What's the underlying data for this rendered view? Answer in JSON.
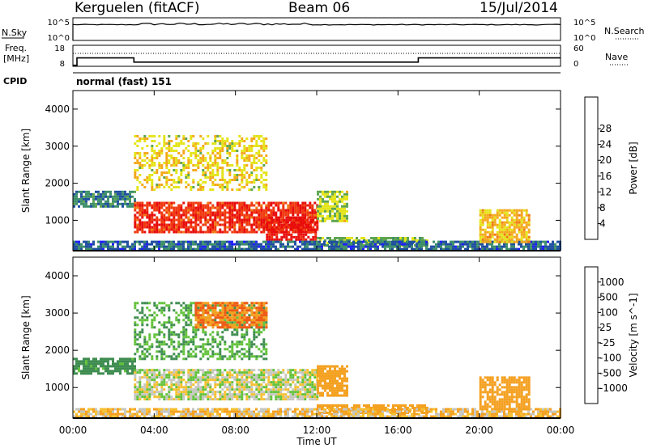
{
  "header": {
    "station": "Kerguelen (fitACF)",
    "beam": "Beam 06",
    "date": "15/Jul/2014"
  },
  "sky_panel": {
    "left_label": "N.Sky",
    "right_label": "N.Search",
    "left_ticks": [
      "10^5",
      "10^0"
    ],
    "right_ticks": [
      "10^5",
      "10^0"
    ]
  },
  "freq_panel": {
    "left_label_line1": "Freq.",
    "left_label_line2": "[MHz]",
    "right_label": "Nave",
    "left_ticks": [
      "18",
      "8"
    ],
    "right_ticks": [
      "60",
      "0"
    ],
    "freq_steps": [
      {
        "from_hour": 0.0,
        "to_hour": 0.2,
        "freq_mhz": 8.5
      },
      {
        "from_hour": 0.2,
        "to_hour": 3.0,
        "freq_mhz": 12.0
      },
      {
        "from_hour": 3.0,
        "to_hour": 17.0,
        "freq_mhz": 10.0
      },
      {
        "from_hour": 17.0,
        "to_hour": 24.0,
        "freq_mhz": 12.0
      }
    ]
  },
  "cpid": {
    "label": "CPID",
    "value": "normal (fast) 151"
  },
  "colors": {
    "power": [
      "#1f1fff",
      "#1f4fa0",
      "#3e8f6a",
      "#5fa550",
      "#e4e41a",
      "#f4a81c",
      "#f07a14",
      "#f03a10",
      "#e80c0c"
    ],
    "velocity": [
      "#e81010",
      "#f05a14",
      "#f4a020",
      "#f5c030",
      "#c6c6c0",
      "#62c23a",
      "#3e8c50",
      "#2f6fb0",
      "#2038c8"
    ],
    "ground_scatter": "#c6c6c0"
  },
  "chart_data": [
    {
      "type": "heatmap",
      "name": "power",
      "ylabel": "Slant Range [km]",
      "ylim": [
        180,
        4500
      ],
      "yticks": [
        "1000",
        "2000",
        "3000",
        "4000"
      ],
      "xlim": [
        0,
        24
      ],
      "colorbar_label": "Power [dB]",
      "colorbar_ticks": [
        "4",
        "8",
        "12",
        "16",
        "20",
        "24",
        "28"
      ],
      "features": [
        {
          "hours": [
            0.0,
            3.0
          ],
          "range_km": [
            1400,
            1800
          ],
          "level_db": 8
        },
        {
          "hours": [
            3.0,
            12.0
          ],
          "range_km": [
            700,
            1500
          ],
          "level_db": 26
        },
        {
          "hours": [
            9.5,
            12.0
          ],
          "range_km": [
            500,
            1100
          ],
          "level_db": 28
        },
        {
          "hours": [
            3.0,
            9.5
          ],
          "range_km": [
            1800,
            3300
          ],
          "level_db": 16
        },
        {
          "hours": [
            12.0,
            13.5
          ],
          "range_km": [
            1000,
            1800
          ],
          "level_db": 14
        },
        {
          "hours": [
            12.0,
            17.5
          ],
          "range_km": [
            350,
            550
          ],
          "level_db": 12
        },
        {
          "hours": [
            0.0,
            24.0
          ],
          "range_km": [
            200,
            450
          ],
          "level_db": 6
        },
        {
          "hours": [
            20.0,
            22.5
          ],
          "range_km": [
            400,
            1300
          ],
          "level_db": 18
        }
      ]
    },
    {
      "type": "heatmap",
      "name": "velocity",
      "ylabel": "Slant Range [km]",
      "ylim": [
        180,
        4500
      ],
      "yticks": [
        "1000",
        "2000",
        "3000",
        "4000"
      ],
      "xlabel": "Time UT",
      "xlim": [
        0,
        24
      ],
      "xticks": [
        "00:00",
        "04:00",
        "08:00",
        "12:00",
        "16:00",
        "20:00",
        "00:00"
      ],
      "colorbar_label": "Velocity [m s^-1]",
      "colorbar_ticks": [
        "1000",
        "500",
        "100",
        "25",
        "-25",
        "-100",
        "-500",
        "-1000"
      ],
      "features": [
        {
          "hours": [
            0.0,
            3.0
          ],
          "range_km": [
            1400,
            1800
          ],
          "velocity_ms": 150
        },
        {
          "hours": [
            3.0,
            12.0
          ],
          "range_km": [
            700,
            1500
          ],
          "velocity_ms": 0
        },
        {
          "hours": [
            3.0,
            9.5
          ],
          "range_km": [
            1800,
            3300
          ],
          "velocity_ms": 100
        },
        {
          "hours": [
            6.0,
            9.5
          ],
          "range_km": [
            2600,
            3300
          ],
          "velocity_ms": -300
        },
        {
          "hours": [
            12.0,
            13.5
          ],
          "range_km": [
            800,
            1600
          ],
          "velocity_ms": -150
        },
        {
          "hours": [
            12.0,
            17.5
          ],
          "range_km": [
            350,
            550
          ],
          "velocity_ms": -150
        },
        {
          "hours": [
            0.0,
            24.0
          ],
          "range_km": [
            200,
            450
          ],
          "velocity_ms": -50
        },
        {
          "hours": [
            20.0,
            22.5
          ],
          "range_km": [
            400,
            1300
          ],
          "velocity_ms": -150
        }
      ]
    }
  ]
}
